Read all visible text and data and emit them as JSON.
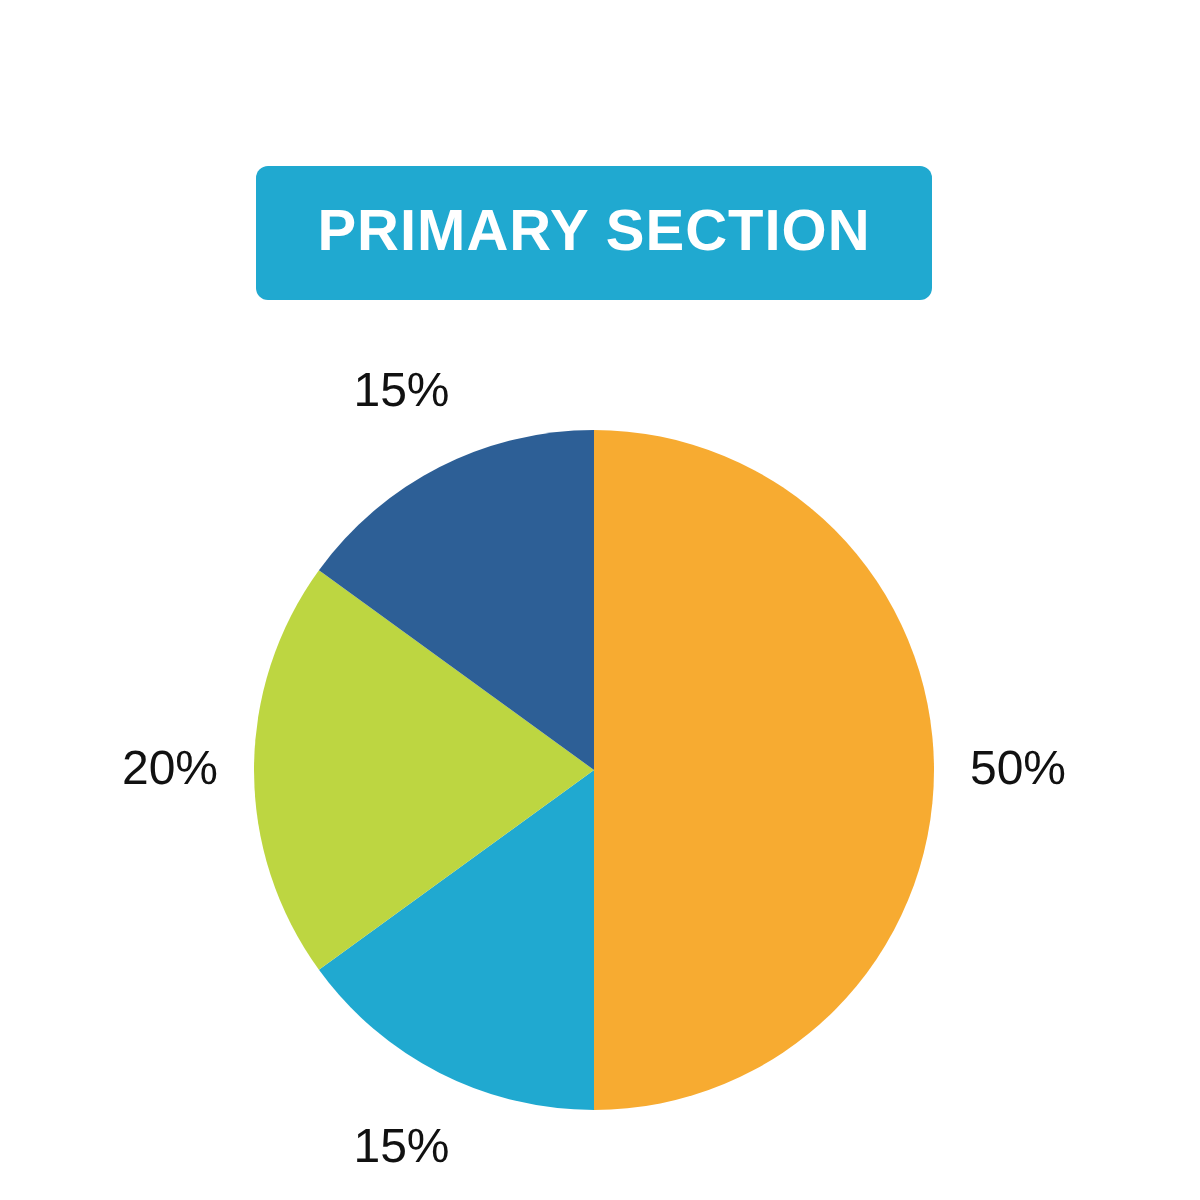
{
  "chart_data": {
    "type": "pie",
    "title": "PRIMARY SECTION",
    "categories": [
      null,
      null,
      null,
      null
    ],
    "values": [
      50,
      15,
      20,
      15
    ],
    "colors": [
      "#f7ab31",
      "#20a9d0",
      "#bdd641",
      "#2d5f96"
    ],
    "value_labels": [
      "50%",
      "15%",
      "20%",
      "15%"
    ]
  }
}
